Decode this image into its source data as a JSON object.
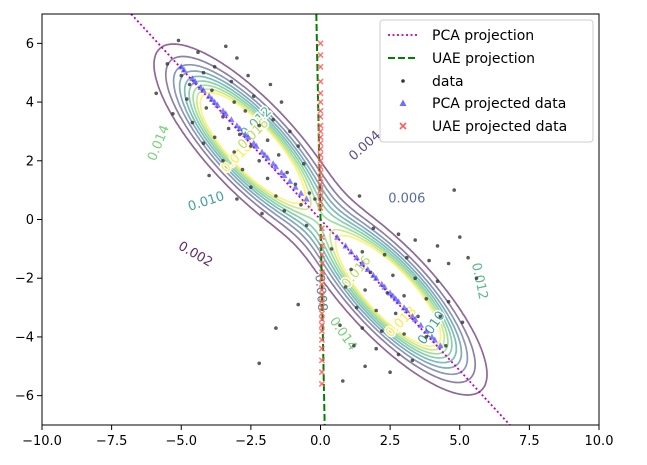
{
  "chart_data": {
    "type": "scatter",
    "title": "",
    "xlabel": "",
    "ylabel": "",
    "xlim": [
      -10.0,
      10.0
    ],
    "ylim": [
      -7.0,
      7.0
    ],
    "x_ticks": [
      -10.0,
      -7.5,
      -5.0,
      -2.5,
      0.0,
      2.5,
      5.0,
      7.5,
      10.0
    ],
    "x_tick_labels": [
      "−10.0",
      "−7.5",
      "−5.0",
      "−2.5",
      "0.0",
      "2.5",
      "5.0",
      "7.5",
      "10.0"
    ],
    "y_ticks": [
      -6,
      -4,
      -2,
      0,
      2,
      4,
      6
    ],
    "y_tick_labels": [
      "−6",
      "−4",
      "−2",
      "0",
      "2",
      "4",
      "6"
    ],
    "grid": false,
    "legend_position": "top-right",
    "density": {
      "description": "mixture of two Gaussians",
      "components": [
        {
          "mean": [
            -2.5,
            2.5
          ],
          "cov": [
            [
              2.0,
              -1.6
            ],
            [
              -1.6,
              2.0
            ]
          ],
          "weight": 0.5
        },
        {
          "mean": [
            2.5,
            -2.5
          ],
          "cov": [
            [
              2.0,
              -1.6
            ],
            [
              -1.6,
              2.0
            ]
          ],
          "weight": 0.5
        }
      ]
    },
    "contour_levels": [
      0.002,
      0.004,
      0.006,
      0.008,
      0.01,
      0.012,
      0.014,
      0.016,
      0.018
    ],
    "contour_labels": [
      {
        "text": "0.002",
        "x": -4.5,
        "y": -1.2,
        "rotation": 30,
        "level": 0.002
      },
      {
        "text": "0.004",
        "x": 1.6,
        "y": 2.5,
        "rotation": -42,
        "level": 0.004
      },
      {
        "text": "0.006",
        "x": 3.1,
        "y": 0.7,
        "rotation": 0,
        "level": 0.006
      },
      {
        "text": "0.008",
        "x": 0.0,
        "y": -2.5,
        "rotation": 85,
        "level": 0.008
      },
      {
        "text": "0.010",
        "x": -4.1,
        "y": 0.6,
        "rotation": -18,
        "level": 0.01
      },
      {
        "text": "0.012",
        "x": -2.3,
        "y": 3.3,
        "rotation": -45,
        "level": 0.012
      },
      {
        "text": "0.014",
        "x": -5.8,
        "y": 2.6,
        "rotation": -68,
        "level": 0.014
      },
      {
        "text": "0.016",
        "x": 1.3,
        "y": -1.8,
        "rotation": -50,
        "level": 0.016
      },
      {
        "text": "0.018",
        "x": -3.0,
        "y": 2.1,
        "rotation": -45,
        "level": 0.018
      },
      {
        "text": "0.012",
        "x": 5.7,
        "y": -2.1,
        "rotation": 78,
        "level": 0.012
      },
      {
        "text": "0.014",
        "x": 0.8,
        "y": -3.9,
        "rotation": 55,
        "level": 0.014
      },
      {
        "text": "0.010",
        "x": 4.0,
        "y": -3.7,
        "rotation": -55,
        "level": 0.01
      },
      {
        "text": "0.018",
        "x": 2.9,
        "y": -3.5,
        "rotation": -45,
        "level": 0.018
      },
      {
        "text": "0.016",
        "x": -2.4,
        "y": 2.9,
        "rotation": -45,
        "level": 0.016
      }
    ],
    "series": [
      {
        "name": "PCA projection",
        "kind": "line",
        "style": "dotted",
        "color": "#bf00bf",
        "x": [
          -6.8,
          6.8
        ],
        "y": [
          7.0,
          -7.0
        ]
      },
      {
        "name": "UAE projection",
        "kind": "line",
        "style": "dashed",
        "color": "#008000",
        "x": [
          -0.15,
          0.15
        ],
        "y": [
          7.0,
          -7.0
        ]
      },
      {
        "name": "data",
        "kind": "scatter",
        "marker": "dot",
        "color": "#333333",
        "points": [
          [
            -5.1,
            6.1
          ],
          [
            -3.4,
            5.9
          ],
          [
            -4.4,
            5.7
          ],
          [
            -3.0,
            5.5
          ],
          [
            -5.5,
            5.3
          ],
          [
            -3.8,
            5.2
          ],
          [
            -4.2,
            5.0
          ],
          [
            -2.6,
            4.9
          ],
          [
            -5.0,
            4.9
          ],
          [
            -3.2,
            4.7
          ],
          [
            -4.7,
            4.6
          ],
          [
            -1.8,
            4.6
          ],
          [
            -5.9,
            4.3
          ],
          [
            -3.9,
            4.4
          ],
          [
            -2.4,
            4.2
          ],
          [
            -4.8,
            4.1
          ],
          [
            -3.1,
            4.0
          ],
          [
            -1.4,
            4.0
          ],
          [
            -4.1,
            3.8
          ],
          [
            -2.7,
            3.7
          ],
          [
            -5.3,
            3.6
          ],
          [
            -3.5,
            3.5
          ],
          [
            -1.7,
            3.4
          ],
          [
            -2.2,
            3.2
          ],
          [
            -4.6,
            3.3
          ],
          [
            -3.3,
            3.1
          ],
          [
            -1.1,
            3.0
          ],
          [
            -2.9,
            2.9
          ],
          [
            -3.8,
            2.8
          ],
          [
            -1.9,
            2.7
          ],
          [
            -2.5,
            2.5
          ],
          [
            -4.2,
            2.6
          ],
          [
            -0.8,
            2.5
          ],
          [
            -3.1,
            2.3
          ],
          [
            -1.5,
            2.2
          ],
          [
            -2.2,
            2.0
          ],
          [
            -3.5,
            2.0
          ],
          [
            -0.6,
            1.9
          ],
          [
            -2.8,
            1.7
          ],
          [
            -1.2,
            1.6
          ],
          [
            -4.0,
            1.5
          ],
          [
            -1.9,
            1.4
          ],
          [
            -0.9,
            1.2
          ],
          [
            -2.5,
            1.1
          ],
          [
            -0.4,
            0.9
          ],
          [
            -1.6,
            0.8
          ],
          [
            -3.0,
            0.7
          ],
          [
            -0.7,
            0.5
          ],
          [
            -1.3,
            0.3
          ],
          [
            -2.1,
            0.2
          ],
          [
            -0.2,
            0.7
          ],
          [
            -0.5,
            -0.2
          ],
          [
            0.4,
            -1.0
          ],
          [
            1.9,
            -0.3
          ],
          [
            2.8,
            -0.5
          ],
          [
            3.4,
            -0.7
          ],
          [
            4.2,
            -0.9
          ],
          [
            5.0,
            -0.6
          ],
          [
            1.5,
            -1.1
          ],
          [
            2.3,
            -1.2
          ],
          [
            3.1,
            -1.3
          ],
          [
            3.9,
            -1.4
          ],
          [
            4.6,
            -1.5
          ],
          [
            5.3,
            -1.3
          ],
          [
            1.1,
            -1.7
          ],
          [
            1.8,
            -1.8
          ],
          [
            2.6,
            -1.9
          ],
          [
            3.4,
            -2.0
          ],
          [
            4.2,
            -2.1
          ],
          [
            5.6,
            -2.0
          ],
          [
            0.9,
            -2.3
          ],
          [
            1.6,
            -2.4
          ],
          [
            2.4,
            -2.5
          ],
          [
            3.0,
            -2.6
          ],
          [
            3.8,
            -2.7
          ],
          [
            4.6,
            -2.8
          ],
          [
            1.3,
            -3.0
          ],
          [
            2.0,
            -3.1
          ],
          [
            2.7,
            -3.2
          ],
          [
            3.5,
            -3.3
          ],
          [
            4.3,
            -3.3
          ],
          [
            5.1,
            -3.5
          ],
          [
            0.7,
            -3.6
          ],
          [
            1.5,
            -3.7
          ],
          [
            2.2,
            -3.8
          ],
          [
            3.0,
            -3.9
          ],
          [
            3.8,
            -4.0
          ],
          [
            1.2,
            -4.3
          ],
          [
            2.0,
            -4.4
          ],
          [
            2.8,
            -4.6
          ],
          [
            4.5,
            -4.3
          ],
          [
            1.6,
            -5.0
          ],
          [
            2.5,
            -5.2
          ],
          [
            3.3,
            -4.8
          ],
          [
            0.8,
            -5.5
          ],
          [
            -1.6,
            -3.7
          ],
          [
            -0.8,
            -2.9
          ],
          [
            -2.2,
            -4.9
          ],
          [
            4.8,
            1.0
          ],
          [
            1.4,
            0.8
          ]
        ]
      },
      {
        "name": "PCA projected data",
        "kind": "scatter",
        "marker": "triangle",
        "color": "#3d3dff",
        "points": [
          [
            -5.0,
            5.2
          ],
          [
            -4.9,
            5.1
          ],
          [
            -4.6,
            4.8
          ],
          [
            -4.5,
            4.7
          ],
          [
            -4.3,
            4.5
          ],
          [
            -4.2,
            4.4
          ],
          [
            -4.0,
            4.2
          ],
          [
            -3.9,
            4.1
          ],
          [
            -3.8,
            4.0
          ],
          [
            -3.7,
            3.9
          ],
          [
            -3.5,
            3.7
          ],
          [
            -3.4,
            3.6
          ],
          [
            -3.2,
            3.4
          ],
          [
            -3.0,
            3.2
          ],
          [
            -2.9,
            3.1
          ],
          [
            -2.7,
            2.9
          ],
          [
            -2.6,
            2.8
          ],
          [
            -2.4,
            2.6
          ],
          [
            -2.3,
            2.5
          ],
          [
            -2.1,
            2.3
          ],
          [
            -2.0,
            2.2
          ],
          [
            -1.9,
            2.1
          ],
          [
            -1.7,
            1.9
          ],
          [
            -1.6,
            1.8
          ],
          [
            -1.4,
            1.6
          ],
          [
            -1.3,
            1.5
          ],
          [
            -1.1,
            1.3
          ],
          [
            -0.9,
            1.1
          ],
          [
            -0.7,
            0.9
          ],
          [
            -0.5,
            0.7
          ],
          [
            0.6,
            -0.6
          ],
          [
            0.9,
            -0.9
          ],
          [
            1.1,
            -1.1
          ],
          [
            1.3,
            -1.3
          ],
          [
            1.5,
            -1.5
          ],
          [
            1.7,
            -1.7
          ],
          [
            1.9,
            -1.9
          ],
          [
            2.0,
            -2.0
          ],
          [
            2.2,
            -2.2
          ],
          [
            2.3,
            -2.3
          ],
          [
            2.5,
            -2.5
          ],
          [
            2.6,
            -2.6
          ],
          [
            2.7,
            -2.7
          ],
          [
            2.8,
            -2.8
          ],
          [
            3.0,
            -3.0
          ],
          [
            3.1,
            -3.1
          ],
          [
            3.3,
            -3.3
          ],
          [
            3.4,
            -3.4
          ],
          [
            3.6,
            -3.6
          ],
          [
            3.8,
            -3.8
          ],
          [
            4.0,
            -4.0
          ],
          [
            4.1,
            -4.1
          ],
          [
            4.3,
            -4.3
          ]
        ]
      },
      {
        "name": "UAE projected data",
        "kind": "scatter",
        "marker": "x",
        "color": "#ff5a5a",
        "points": [
          [
            0.0,
            6.0
          ],
          [
            0.0,
            5.6
          ],
          [
            0.0,
            5.2
          ],
          [
            0.0,
            4.7
          ],
          [
            0.0,
            4.3
          ],
          [
            0.0,
            4.0
          ],
          [
            0.0,
            3.7
          ],
          [
            0.0,
            3.5
          ],
          [
            0.0,
            3.2
          ],
          [
            0.0,
            3.0
          ],
          [
            0.0,
            2.8
          ],
          [
            0.0,
            2.6
          ],
          [
            0.0,
            2.4
          ],
          [
            0.0,
            2.2
          ],
          [
            0.0,
            2.0
          ],
          [
            0.0,
            1.8
          ],
          [
            0.0,
            1.6
          ],
          [
            0.0,
            1.4
          ],
          [
            0.0,
            1.2
          ],
          [
            0.0,
            1.0
          ],
          [
            0.0,
            0.8
          ],
          [
            0.0,
            0.6
          ],
          [
            0.0,
            0.4
          ],
          [
            0.05,
            -0.3
          ],
          [
            0.05,
            -0.6
          ],
          [
            0.05,
            -0.9
          ],
          [
            0.05,
            -1.2
          ],
          [
            0.05,
            -1.5
          ],
          [
            0.05,
            -1.8
          ],
          [
            0.05,
            -2.0
          ],
          [
            0.05,
            -2.2
          ],
          [
            0.05,
            -2.4
          ],
          [
            0.05,
            -2.6
          ],
          [
            0.05,
            -2.8
          ],
          [
            0.05,
            -3.0
          ],
          [
            0.05,
            -3.2
          ],
          [
            0.05,
            -3.4
          ],
          [
            0.05,
            -3.6
          ],
          [
            0.05,
            -3.8
          ],
          [
            0.05,
            -4.1
          ],
          [
            0.05,
            -4.4
          ],
          [
            0.05,
            -4.8
          ],
          [
            0.05,
            -5.2
          ],
          [
            0.05,
            -5.6
          ]
        ]
      }
    ],
    "legend": [
      {
        "label": "PCA projection",
        "style": "dotted-line",
        "color": "#bf00bf"
      },
      {
        "label": "UAE projection",
        "style": "dashed-line",
        "color": "#008000"
      },
      {
        "label": "data",
        "style": "dot",
        "color": "#333333"
      },
      {
        "label": "PCA projected data",
        "style": "triangle",
        "color": "#3d3dff"
      },
      {
        "label": "UAE projected data",
        "style": "x",
        "color": "#ff5a5a"
      }
    ],
    "colors": {
      "viridis_low": "#440154",
      "viridis_mid": "#21918c",
      "viridis_high": "#fde725"
    }
  }
}
